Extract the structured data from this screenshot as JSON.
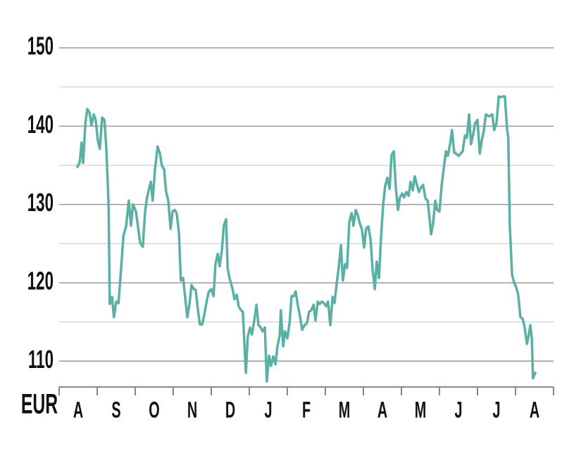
{
  "chart_data": {
    "type": "line",
    "y_label": "EUR",
    "categories": [
      "A",
      "S",
      "O",
      "N",
      "D",
      "J",
      "F",
      "M",
      "A",
      "M",
      "J",
      "J",
      "A"
    ],
    "xlim": [
      0,
      13
    ],
    "xticks": [
      0,
      1,
      2,
      3,
      4,
      5,
      6,
      7,
      8,
      9,
      10,
      11,
      12,
      13
    ],
    "ylim": [
      106.7,
      150
    ],
    "yticks": [
      110,
      120,
      130,
      140,
      150
    ],
    "minor_yticks": [
      115,
      125,
      135,
      145
    ],
    "grid": true,
    "color": "#5bb0a6",
    "x": [
      0.48,
      0.54,
      0.59,
      0.63,
      0.69,
      0.74,
      0.8,
      0.85,
      0.91,
      0.96,
      1.02,
      1.07,
      1.13,
      1.19,
      1.24,
      1.3,
      1.33,
      1.39,
      1.44,
      1.5,
      1.56,
      1.63,
      1.69,
      1.76,
      1.83,
      1.89,
      1.94,
      2.02,
      2.07,
      2.13,
      2.2,
      2.26,
      2.31,
      2.41,
      2.46,
      2.52,
      2.59,
      2.65,
      2.7,
      2.76,
      2.81,
      2.87,
      2.93,
      2.98,
      3.04,
      3.09,
      3.15,
      3.2,
      3.26,
      3.31,
      3.37,
      3.43,
      3.48,
      3.54,
      3.59,
      3.65,
      3.7,
      3.76,
      3.81,
      3.87,
      3.93,
      4.0,
      4.06,
      4.11,
      4.17,
      4.22,
      4.28,
      4.33,
      4.39,
      4.43,
      4.48,
      4.56,
      4.61,
      4.67,
      4.72,
      4.78,
      4.83,
      4.91,
      4.96,
      5.02,
      5.07,
      5.13,
      5.19,
      5.24,
      5.3,
      5.35,
      5.41,
      5.46,
      5.52,
      5.57,
      5.63,
      5.69,
      5.74,
      5.8,
      5.83,
      5.89,
      5.94,
      6.0,
      6.06,
      6.11,
      6.17,
      6.22,
      6.28,
      6.33,
      6.39,
      6.44,
      6.52,
      6.57,
      6.63,
      6.69,
      6.74,
      6.8,
      6.85,
      6.91,
      6.96,
      7.02,
      7.07,
      7.13,
      7.19,
      7.24,
      7.3,
      7.35,
      7.41,
      7.46,
      7.52,
      7.57,
      7.63,
      7.69,
      7.74,
      7.8,
      7.85,
      7.91,
      7.96,
      8.02,
      8.07,
      8.13,
      8.19,
      8.24,
      8.3,
      8.35,
      8.41,
      8.46,
      8.52,
      8.57,
      8.63,
      8.69,
      8.74,
      8.8,
      8.85,
      8.91,
      8.96,
      9.02,
      9.07,
      9.13,
      9.19,
      9.24,
      9.3,
      9.35,
      9.41,
      9.46,
      9.52,
      9.57,
      9.63,
      9.69,
      9.74,
      9.78,
      9.83,
      9.89,
      9.94,
      10.0,
      10.06,
      10.11,
      10.17,
      10.22,
      10.28,
      10.33,
      10.39,
      10.44,
      10.5,
      10.56,
      10.61,
      10.67,
      10.72,
      10.78,
      10.83,
      10.89,
      10.94,
      11.0,
      11.06,
      11.11,
      11.17,
      11.22,
      11.28,
      11.33,
      11.39,
      11.44,
      11.5,
      11.56,
      11.61,
      11.67,
      11.72,
      11.78,
      11.81,
      11.85,
      11.91,
      11.96,
      12.02,
      12.07,
      12.13,
      12.19,
      12.24,
      12.3,
      12.35,
      12.39,
      12.43,
      12.46,
      12.52
    ],
    "values": [
      134.8,
      135.4,
      137.9,
      135.3,
      140.4,
      142.2,
      141.7,
      140.1,
      141.5,
      140.8,
      138.1,
      137.1,
      141.1,
      140.8,
      137.2,
      130.0,
      117.3,
      118.2,
      115.6,
      117.6,
      117.4,
      121.9,
      126.0,
      127.2,
      130.5,
      127.3,
      130.0,
      129.1,
      127.3,
      125.1,
      124.6,
      129.1,
      130.9,
      132.9,
      130.5,
      134.5,
      137.4,
      136.5,
      135.0,
      134.5,
      131.7,
      130.5,
      126.9,
      129.1,
      129.3,
      128.9,
      126.4,
      120.3,
      120.6,
      118.3,
      115.6,
      117.4,
      119.7,
      119.2,
      119.1,
      116.5,
      114.7,
      114.7,
      115.8,
      117.4,
      118.8,
      119.2,
      118.3,
      122.4,
      123.7,
      122.1,
      124.2,
      127.3,
      128.1,
      121.9,
      120.6,
      119.2,
      117.9,
      118.5,
      117.0,
      116.5,
      116.3,
      108.5,
      113.1,
      114.3,
      113.4,
      115.2,
      117.2,
      114.6,
      114.3,
      113.8,
      114.3,
      107.4,
      110.7,
      109.4,
      110.6,
      109.6,
      111.9,
      113.3,
      116.5,
      111.9,
      113.8,
      112.9,
      114.9,
      118.3,
      118.3,
      118.9,
      117.0,
      115.8,
      114.0,
      114.5,
      114.9,
      116.3,
      116.5,
      117.2,
      115.2,
      117.6,
      117.3,
      117.6,
      117.4,
      117.0,
      117.6,
      114.6,
      118.2,
      117.4,
      120.0,
      121.9,
      124.8,
      120.3,
      122.4,
      121.9,
      127.8,
      128.9,
      127.3,
      129.3,
      128.7,
      127.5,
      126.9,
      124.5,
      126.9,
      127.2,
      125.5,
      121.8,
      119.2,
      122.7,
      120.6,
      125.5,
      130.0,
      132.3,
      133.4,
      132.0,
      136.3,
      136.8,
      132.3,
      129.3,
      130.9,
      131.4,
      130.9,
      131.6,
      131.1,
      132.9,
      131.8,
      133.6,
      132.5,
      131.6,
      132.2,
      132.5,
      130.8,
      130.5,
      128.2,
      126.2,
      127.5,
      130.5,
      129.3,
      129.1,
      132.5,
      134.5,
      136.8,
      136.2,
      137.7,
      139.5,
      136.6,
      136.5,
      136.2,
      136.5,
      136.8,
      138.8,
      138.5,
      141.5,
      137.7,
      139.0,
      140.4,
      140.8,
      136.5,
      138.1,
      139.5,
      141.5,
      141.3,
      141.3,
      141.5,
      139.5,
      140.4,
      143.8,
      143.7,
      143.8,
      143.8,
      139.5,
      138.6,
      127.3,
      121.0,
      120.1,
      119.4,
      118.5,
      115.6,
      115.4,
      114.3,
      112.2,
      113.4,
      114.6,
      112.8,
      107.8,
      108.5
    ]
  }
}
